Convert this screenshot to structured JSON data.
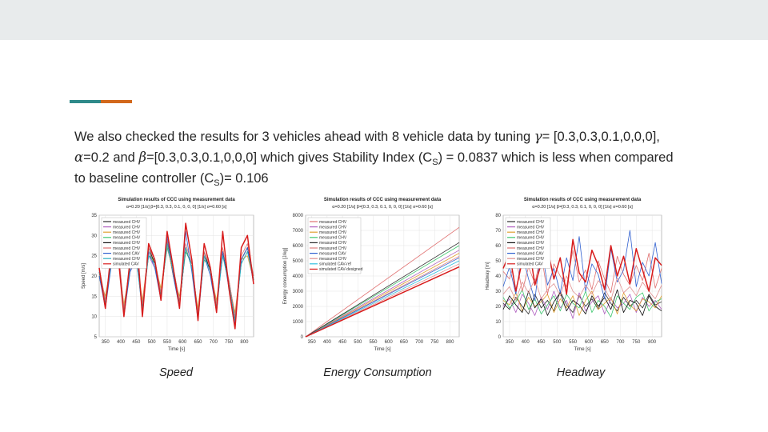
{
  "slide": {
    "paragraph": {
      "p1": "We also checked the results for 3 vehicles ahead with 8 vehicle data by tuning ",
      "gamma_sym": "γ",
      "p2": "= [0.3,0.3,0.1,0,0,0],",
      "alpha_sym": "α",
      "p3": "=0.2 and ",
      "beta_sym": "β",
      "p4": "=[0.3,0.3,0.1,0,0,0] which gives Stability Index (C",
      "sub1": "S",
      "p5": ") = 0.0837 which is less when compared",
      "p6": "to baseline controller (C",
      "sub2": "S",
      "p7": ")= 0.106"
    },
    "captions": {
      "speed": "Speed",
      "energy": "Energy Consumption",
      "headway": "Headway"
    }
  },
  "colors": {
    "accent_teal": "#2e8a8a",
    "accent_orange": "#d2681c",
    "topbar": "#e8ebec"
  },
  "plot_title": "Simulation results of CCC using measurement data",
  "plot_subtitle": "α=0.20 [1/s]   β=[0.3, 0.3, 0.1, 0, 0, 0] [1/s]   σ=0.60 [s]",
  "chart_data": [
    {
      "type": "line",
      "title": "Simulation results of CCC using measurement data",
      "subtitle": "α=0.20 [1/s]   β=[0.3, 0.3, 0.1, 0, 0, 0] [1/s]   σ=0.60 [s]",
      "xlabel": "Time [s]",
      "ylabel": "Speed [m/s]",
      "xlim": [
        330,
        830
      ],
      "ylim": [
        5,
        35
      ],
      "xticks": [
        350,
        400,
        450,
        500,
        550,
        600,
        650,
        700,
        750,
        800
      ],
      "yticks": [
        5,
        10,
        15,
        20,
        25,
        30,
        35
      ],
      "grid": true,
      "legend_position": "top-left",
      "x": [
        330,
        350,
        370,
        390,
        410,
        430,
        450,
        470,
        490,
        510,
        530,
        550,
        570,
        590,
        610,
        630,
        650,
        670,
        690,
        710,
        730,
        750,
        770,
        790,
        810,
        830
      ],
      "series": [
        {
          "name": "measured CHV",
          "color": "#2b2b2b",
          "values": [
            20,
            13,
            24,
            27,
            11,
            22,
            25,
            12,
            26,
            23,
            15,
            28,
            20,
            13,
            27,
            22,
            10,
            25,
            21,
            12,
            26,
            18,
            9,
            24,
            27,
            19
          ]
        },
        {
          "name": "measured CHV",
          "color": "#b05fc0",
          "values": [
            21,
            14,
            23,
            26,
            12,
            21,
            24,
            13,
            25,
            22,
            16,
            27,
            21,
            14,
            26,
            23,
            11,
            24,
            22,
            13,
            25,
            19,
            10,
            23,
            26,
            20
          ]
        },
        {
          "name": "measured CHV",
          "color": "#e0a030",
          "values": [
            20,
            15,
            24,
            25,
            13,
            22,
            25,
            14,
            26,
            23,
            17,
            28,
            20,
            15,
            27,
            22,
            12,
            25,
            21,
            14,
            26,
            18,
            11,
            24,
            25,
            19
          ]
        },
        {
          "name": "measured CHV",
          "color": "#40c870",
          "values": [
            22,
            14,
            25,
            26,
            12,
            23,
            24,
            13,
            25,
            24,
            16,
            27,
            22,
            14,
            26,
            23,
            11,
            24,
            22,
            13,
            25,
            19,
            10,
            23,
            26,
            20
          ]
        },
        {
          "name": "measured CHV",
          "color": "#101010",
          "values": [
            21,
            13,
            24,
            27,
            11,
            22,
            25,
            12,
            27,
            23,
            15,
            29,
            21,
            13,
            27,
            22,
            10,
            26,
            21,
            12,
            26,
            18,
            9,
            24,
            27,
            19
          ]
        },
        {
          "name": "measured CHV",
          "color": "#e07070",
          "values": [
            22,
            14,
            25,
            28,
            12,
            23,
            26,
            13,
            27,
            24,
            16,
            29,
            22,
            14,
            28,
            23,
            11,
            26,
            22,
            13,
            27,
            19,
            10,
            25,
            28,
            20
          ]
        },
        {
          "name": "measured CAV",
          "color": "#3060d0",
          "values": [
            20,
            12,
            23,
            27,
            10,
            21,
            25,
            11,
            26,
            22,
            14,
            30,
            20,
            12,
            31,
            21,
            9,
            25,
            20,
            11,
            26,
            17,
            8,
            24,
            27,
            18
          ]
        },
        {
          "name": "measured CHV",
          "color": "#30b0c0",
          "values": [
            21,
            13,
            24,
            26,
            11,
            22,
            24,
            12,
            25,
            23,
            15,
            28,
            21,
            13,
            27,
            22,
            10,
            25,
            21,
            12,
            25,
            18,
            9,
            23,
            26,
            19
          ]
        },
        {
          "name": "simulated CAV",
          "color": "#d81c1c",
          "values": [
            22,
            12,
            27,
            26,
            10,
            24,
            31,
            10,
            28,
            24,
            14,
            31,
            22,
            12,
            33,
            24,
            9,
            28,
            22,
            11,
            31,
            17,
            7,
            27,
            30,
            18
          ]
        }
      ]
    },
    {
      "type": "line",
      "title": "Simulation results of CCC using measurement data",
      "subtitle": "α=0.20 [1/s]   β=[0.3, 0.3, 0.1, 0, 0, 0] [1/s]   σ=0.60 [s]",
      "xlabel": "Time [s]",
      "ylabel": "Energy consumption [J/kg]",
      "xlim": [
        330,
        830
      ],
      "ylim": [
        0,
        8000
      ],
      "xticks": [
        350,
        400,
        450,
        500,
        550,
        600,
        650,
        700,
        750,
        800
      ],
      "yticks": [
        0,
        1000,
        2000,
        3000,
        4000,
        5000,
        6000,
        7000,
        8000
      ],
      "grid": true,
      "legend_position": "top-left",
      "x": [
        330,
        830
      ],
      "series": [
        {
          "name": "measured CHV",
          "color": "#e07070",
          "values": [
            0,
            7200
          ]
        },
        {
          "name": "measured CHV",
          "color": "#b05fc0",
          "values": [
            0,
            5700
          ]
        },
        {
          "name": "measured CHV",
          "color": "#e0a030",
          "values": [
            0,
            5500
          ]
        },
        {
          "name": "measured CHV",
          "color": "#40c870",
          "values": [
            0,
            6000
          ]
        },
        {
          "name": "measured CHV",
          "color": "#2b2b2b",
          "values": [
            0,
            6200
          ]
        },
        {
          "name": "measured CHV",
          "color": "#e08080",
          "values": [
            0,
            5300
          ]
        },
        {
          "name": "measured CAV",
          "color": "#3060d0",
          "values": [
            0,
            5200
          ]
        },
        {
          "name": "measured CHV",
          "color": "#e09090",
          "values": [
            0,
            4800
          ]
        },
        {
          "name": "simulated CAV-ref",
          "color": "#30c0e0",
          "values": [
            0,
            5000
          ]
        },
        {
          "name": "simulated CAV-designed",
          "color": "#d81c1c",
          "values": [
            0,
            4600
          ]
        }
      ]
    },
    {
      "type": "line",
      "title": "Simulation results of CCC using measurement data",
      "subtitle": "α=0.20 [1/s]   β=[0.3, 0.3, 0.1, 0, 0, 0] [1/s]   σ=0.60 [s]",
      "xlabel": "Time [s]",
      "ylabel": "Headway [m]",
      "xlim": [
        330,
        830
      ],
      "ylim": [
        0,
        80
      ],
      "xticks": [
        350,
        400,
        450,
        500,
        550,
        600,
        650,
        700,
        750,
        800
      ],
      "yticks": [
        0,
        10,
        20,
        30,
        40,
        50,
        60,
        70,
        80
      ],
      "grid": true,
      "legend_position": "top-left",
      "x": [
        330,
        350,
        370,
        390,
        410,
        430,
        450,
        470,
        490,
        510,
        530,
        550,
        570,
        590,
        610,
        630,
        650,
        670,
        690,
        710,
        730,
        750,
        770,
        790,
        810,
        830
      ],
      "series": [
        {
          "name": "measured CHV",
          "color": "#2b2b2b",
          "values": [
            22,
            18,
            26,
            20,
            15,
            28,
            19,
            24,
            17,
            30,
            21,
            16,
            27,
            20,
            25,
            18,
            29,
            22,
            17,
            26,
            20,
            24,
            19,
            28,
            21,
            23
          ]
        },
        {
          "name": "measured CHV",
          "color": "#b05fc0",
          "values": [
            20,
            25,
            16,
            28,
            22,
            14,
            26,
            18,
            30,
            19,
            24,
            12,
            29,
            17,
            23,
            27,
            15,
            25,
            19,
            22,
            28,
            16,
            26,
            20,
            24,
            18
          ]
        },
        {
          "name": "measured CHV",
          "color": "#e0a030",
          "values": [
            24,
            21,
            29,
            17,
            26,
            20,
            23,
            28,
            16,
            25,
            19,
            27,
            14,
            24,
            30,
            18,
            22,
            26,
            15,
            29,
            21,
            17,
            25,
            23,
            19,
            27
          ]
        },
        {
          "name": "measured CHV",
          "color": "#40c870",
          "values": [
            26,
            19,
            23,
            31,
            18,
            25,
            15,
            21,
            27,
            17,
            28,
            22,
            19,
            30,
            16,
            24,
            20,
            13,
            27,
            22,
            18,
            26,
            29,
            17,
            23,
            25
          ]
        },
        {
          "name": "measured CHV",
          "color": "#101010",
          "values": [
            18,
            27,
            21,
            16,
            30,
            19,
            25,
            14,
            23,
            29,
            17,
            24,
            21,
            15,
            27,
            20,
            26,
            18,
            31,
            16,
            24,
            22,
            14,
            27,
            20,
            17
          ]
        },
        {
          "name": "measured CHV",
          "color": "#e07070",
          "values": [
            43,
            38,
            52,
            30,
            46,
            35,
            55,
            28,
            48,
            40,
            33,
            57,
            36,
            44,
            31,
            50,
            38,
            29,
            53,
            41,
            34,
            47,
            37,
            55,
            32,
            45
          ]
        },
        {
          "name": "measured CAV",
          "color": "#3060d0",
          "values": [
            33,
            46,
            28,
            55,
            38,
            24,
            60,
            34,
            45,
            29,
            52,
            37,
            66,
            30,
            48,
            41,
            25,
            58,
            36,
            44,
            70,
            33,
            49,
            40,
            62,
            35
          ]
        },
        {
          "name": "measured CHV",
          "color": "#e09090",
          "values": [
            28,
            33,
            24,
            36,
            29,
            38,
            25,
            31,
            35,
            27,
            40,
            30,
            26,
            34,
            28,
            37,
            32,
            24,
            39,
            29,
            33,
            27,
            36,
            30,
            25,
            34
          ]
        },
        {
          "name": "simulated CAV",
          "color": "#d81c1c",
          "values": [
            45,
            55,
            30,
            50,
            62,
            34,
            48,
            58,
            38,
            52,
            28,
            64,
            42,
            36,
            57,
            47,
            31,
            60,
            40,
            53,
            35,
            58,
            44,
            30,
            52,
            47
          ]
        }
      ]
    }
  ]
}
